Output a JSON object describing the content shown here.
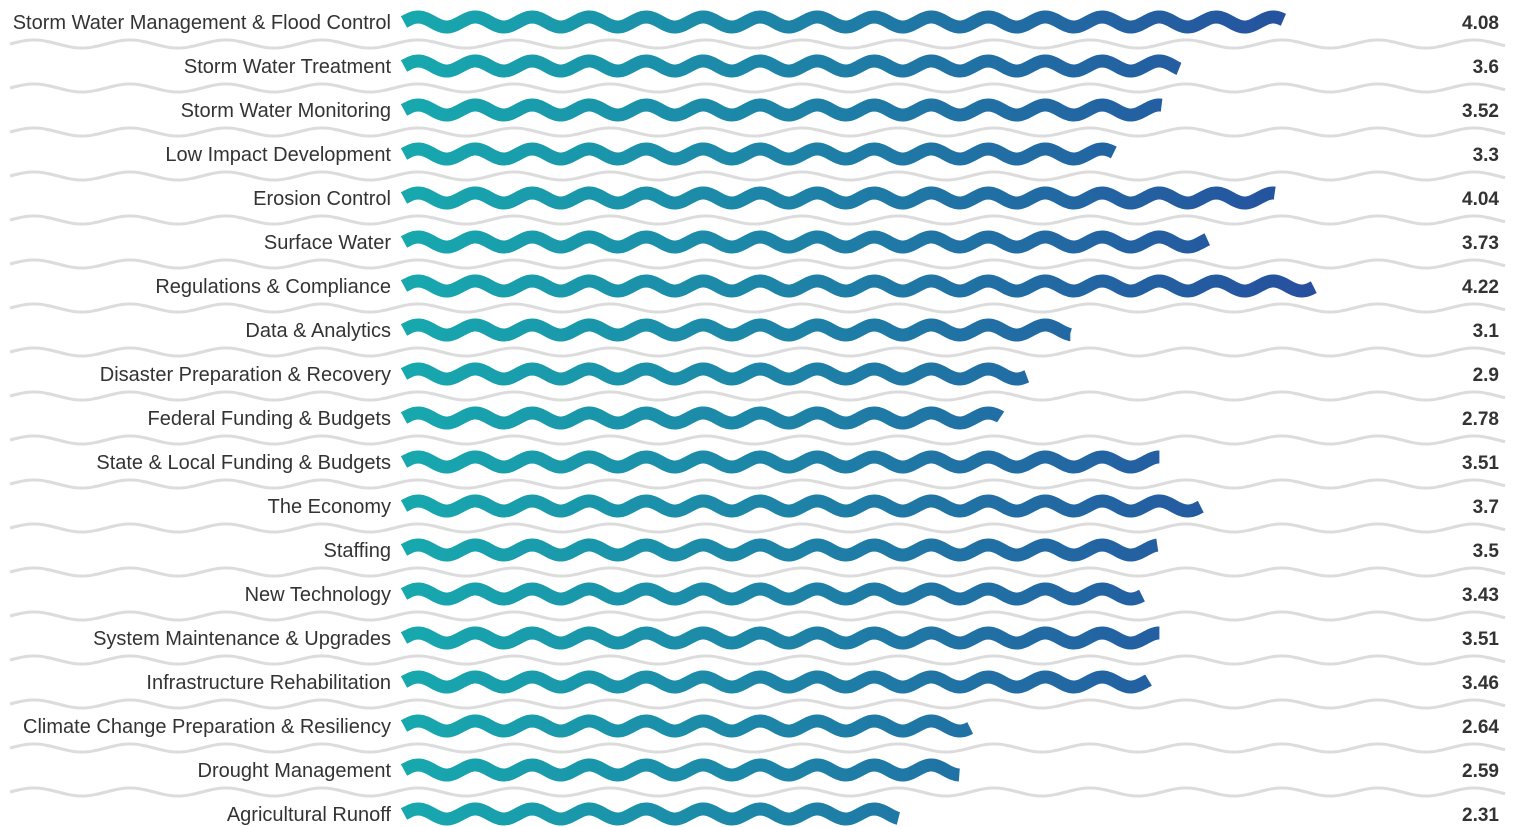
{
  "chart_data": {
    "type": "bar",
    "orientation": "horizontal",
    "title": "",
    "xlabel": "",
    "ylabel": "",
    "xlim": [
      0,
      4.5
    ],
    "grid": false,
    "legend": "none",
    "categories": [
      "Storm Water Management & Flood Control",
      "Storm Water Treatment",
      "Storm Water Monitoring",
      "Low Impact Development",
      "Erosion Control",
      "Surface Water",
      "Regulations & Compliance",
      "Data & Analytics",
      "Disaster Preparation & Recovery",
      "Federal Funding & Budgets",
      "State & Local Funding & Budgets",
      "The Economy",
      "Staffing",
      "New Technology",
      "System Maintenance & Upgrades",
      "Infrastructure Rehabilitation",
      "Climate Change Preparation & Resiliency",
      "Drought Management",
      "Agricultural Runoff"
    ],
    "values": [
      4.08,
      3.6,
      3.52,
      3.3,
      4.04,
      3.73,
      4.22,
      3.1,
      2.9,
      2.78,
      3.51,
      3.7,
      3.5,
      3.43,
      3.51,
      3.46,
      2.64,
      2.59,
      2.31
    ],
    "value_labels": [
      "4.08",
      "3.6",
      "3.52",
      "3.3",
      "4.04",
      "3.73",
      "4.22",
      "3.1",
      "2.9",
      "2.78",
      "3.51",
      "3.7",
      "3.5",
      "3.43",
      "3.51",
      "3.46",
      "2.64",
      "2.59",
      "2.31"
    ],
    "colors": {
      "bar_start": "#17a9ae",
      "bar_end": "#264f9e",
      "background_wave": "#dcdcdc",
      "text": "#333333"
    }
  }
}
